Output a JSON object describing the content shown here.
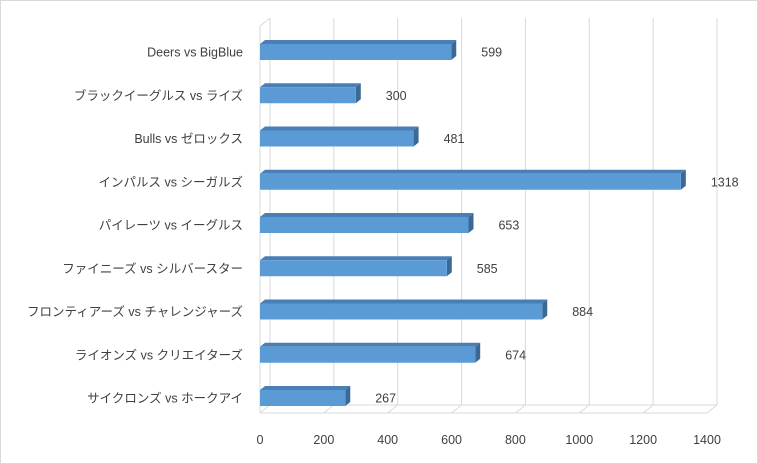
{
  "chart_data": {
    "type": "bar",
    "horizontal": true,
    "three_d": true,
    "categories": [
      "Deers vs BigBlue",
      "ブラックイーグルス vs ライズ",
      "Bulls vs ゼロックス",
      "インパルス vs シーガルズ",
      "パイレーツ vs イーグルス",
      "ファイニーズ vs シルバースター",
      "フロンティアーズ vs チャレンジャーズ",
      "ライオンズ vs クリエイターズ",
      "サイクロンズ vs ホークアイ"
    ],
    "values": [
      599,
      300,
      481,
      1318,
      653,
      585,
      884,
      674,
      267
    ],
    "data_labels": true,
    "xlim": [
      0,
      1400
    ],
    "x_ticks": [
      0,
      200,
      400,
      600,
      800,
      1000,
      1200,
      1400
    ],
    "grid": true,
    "legend": false
  },
  "colors": {
    "bar_front": "#5b9bd5",
    "bar_top": "#4a7fb5",
    "bar_side": "#3b6894",
    "text": "#404040",
    "grid": "#d9d9d9",
    "border": "#d9d9d9"
  }
}
